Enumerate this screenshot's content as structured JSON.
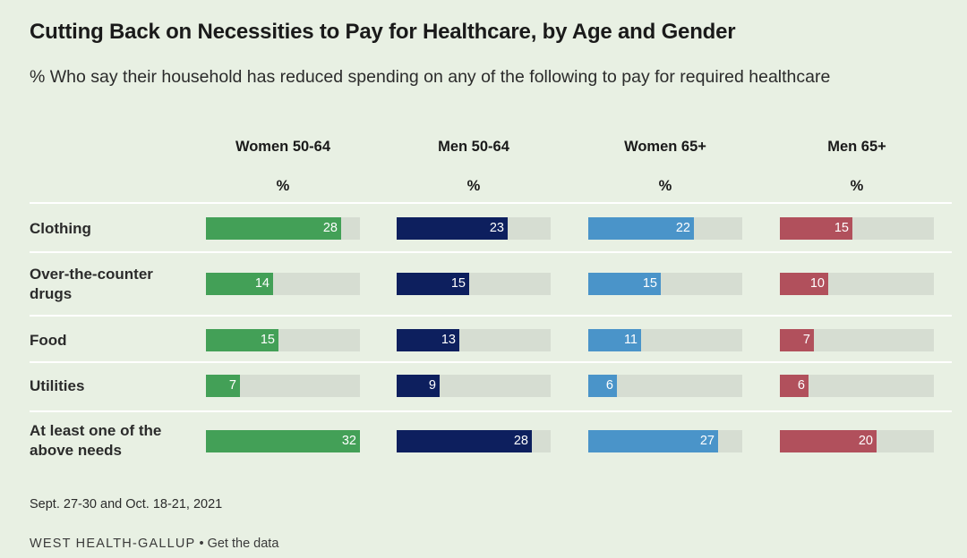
{
  "title": "Cutting Back on Necessities to Pay for Healthcare, by Age and Gender",
  "subtitle": "% Who say their household has reduced spending on any of the following to pay for required healthcare",
  "source_note": "Sept. 27-30 and Oct. 18-21, 2021",
  "footer": {
    "brand": "WEST HEALTH-GALLUP",
    "separator": " • ",
    "link": "Get the data"
  },
  "colors": {
    "women_50_64": "#43a057",
    "men_50_64": "#0d1f5e",
    "women_65": "#4a94c9",
    "men_65": "#b1505c",
    "track": "#d6ddd2"
  },
  "chart_data": {
    "type": "bar",
    "title": "Cutting Back on Necessities to Pay for Healthcare, by Age and Gender",
    "subtitle": "% Who say their household has reduced spending on any of the following to pay for required healthcare",
    "unit": "%",
    "xlim": [
      0,
      32
    ],
    "categories": [
      "Clothing",
      "Over-the-counter drugs",
      "Food",
      "Utilities",
      "At least one of the above needs"
    ],
    "series": [
      {
        "name": "Women 50-64",
        "unit": "%",
        "values": [
          28,
          14,
          15,
          7,
          32
        ]
      },
      {
        "name": "Men 50-64",
        "unit": "%",
        "values": [
          23,
          15,
          13,
          9,
          28
        ]
      },
      {
        "name": "Women 65+",
        "unit": "%",
        "values": [
          22,
          15,
          11,
          6,
          27
        ]
      },
      {
        "name": "Men 65+",
        "unit": "%",
        "values": [
          15,
          10,
          7,
          6,
          20
        ]
      }
    ]
  }
}
